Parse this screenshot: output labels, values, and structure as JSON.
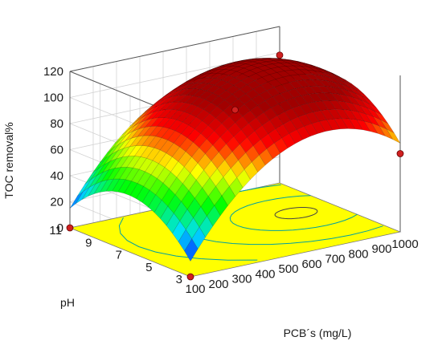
{
  "chart_data": {
    "type": "surface3d",
    "title": "",
    "zlabel": "TOC removal%",
    "xlabel": "PCB´s (mg/L)",
    "ylabel": "pH",
    "x_ticks": [
      "100",
      "200",
      "300",
      "400",
      "500",
      "600",
      "700",
      "800",
      "900",
      "1000"
    ],
    "y_ticks": [
      "3",
      "5",
      "7",
      "9",
      "11"
    ],
    "z_ticks": [
      "0",
      "20",
      "40",
      "60",
      "80",
      "100",
      "120"
    ],
    "xlim": [
      100,
      1000
    ],
    "ylim": [
      3,
      11
    ],
    "zlim": [
      0,
      120
    ],
    "surface_corners": [
      {
        "pcb": 100,
        "ph": 3,
        "toc": 12
      },
      {
        "pcb": 100,
        "ph": 11,
        "toc": 15
      },
      {
        "pcb": 1000,
        "ph": 3,
        "toc": 68
      },
      {
        "pcb": 1000,
        "ph": 11,
        "toc": 72
      }
    ],
    "design_points": [
      {
        "pcb": 100,
        "ph": 11,
        "toc": 0
      },
      {
        "pcb": 100,
        "ph": 3,
        "toc": 0
      },
      {
        "pcb": 1000,
        "ph": 3,
        "toc": 60
      },
      {
        "pcb": 1000,
        "ph": 11,
        "toc": 98
      },
      {
        "pcb": 550,
        "ph": 7,
        "toc": 92
      }
    ],
    "floor_color": "#ffff00",
    "contour_color": "#00a0a0",
    "colormap": [
      "#0000ff",
      "#00e0ff",
      "#00ff00",
      "#ffff00",
      "#ff0000",
      "#a00000"
    ],
    "point_color": "#d02020",
    "grid": true
  }
}
